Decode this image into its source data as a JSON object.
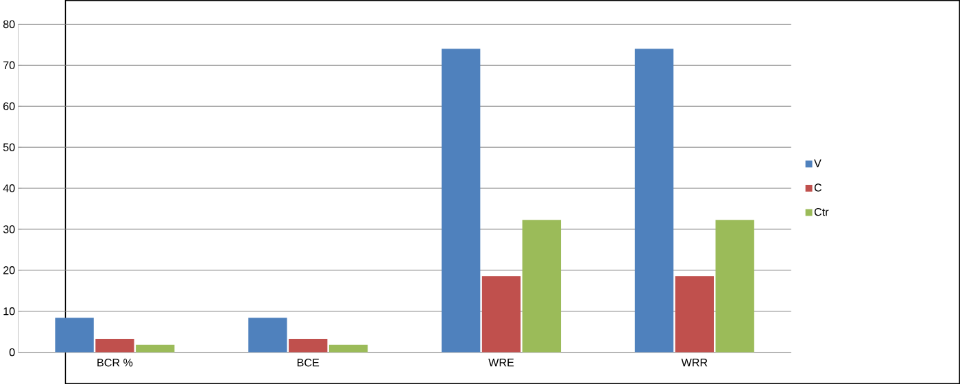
{
  "chart_data": {
    "type": "bar",
    "categories": [
      "BCR %",
      "BCE",
      "WRE",
      "WRR"
    ],
    "series": [
      {
        "name": "V",
        "color": "#4f81bd",
        "values": [
          8.4,
          8.4,
          74.0,
          74.0
        ]
      },
      {
        "name": "C",
        "color": "#c0504d",
        "values": [
          3.3,
          3.3,
          18.6,
          18.6
        ]
      },
      {
        "name": "Ctr",
        "color": "#9bbb59",
        "values": [
          1.8,
          1.8,
          32.3,
          32.3
        ]
      }
    ],
    "ylim": [
      0,
      80
    ],
    "yticks": [
      0,
      10,
      20,
      30,
      40,
      50,
      60,
      70,
      80
    ],
    "grid": "y",
    "legend": "right"
  }
}
